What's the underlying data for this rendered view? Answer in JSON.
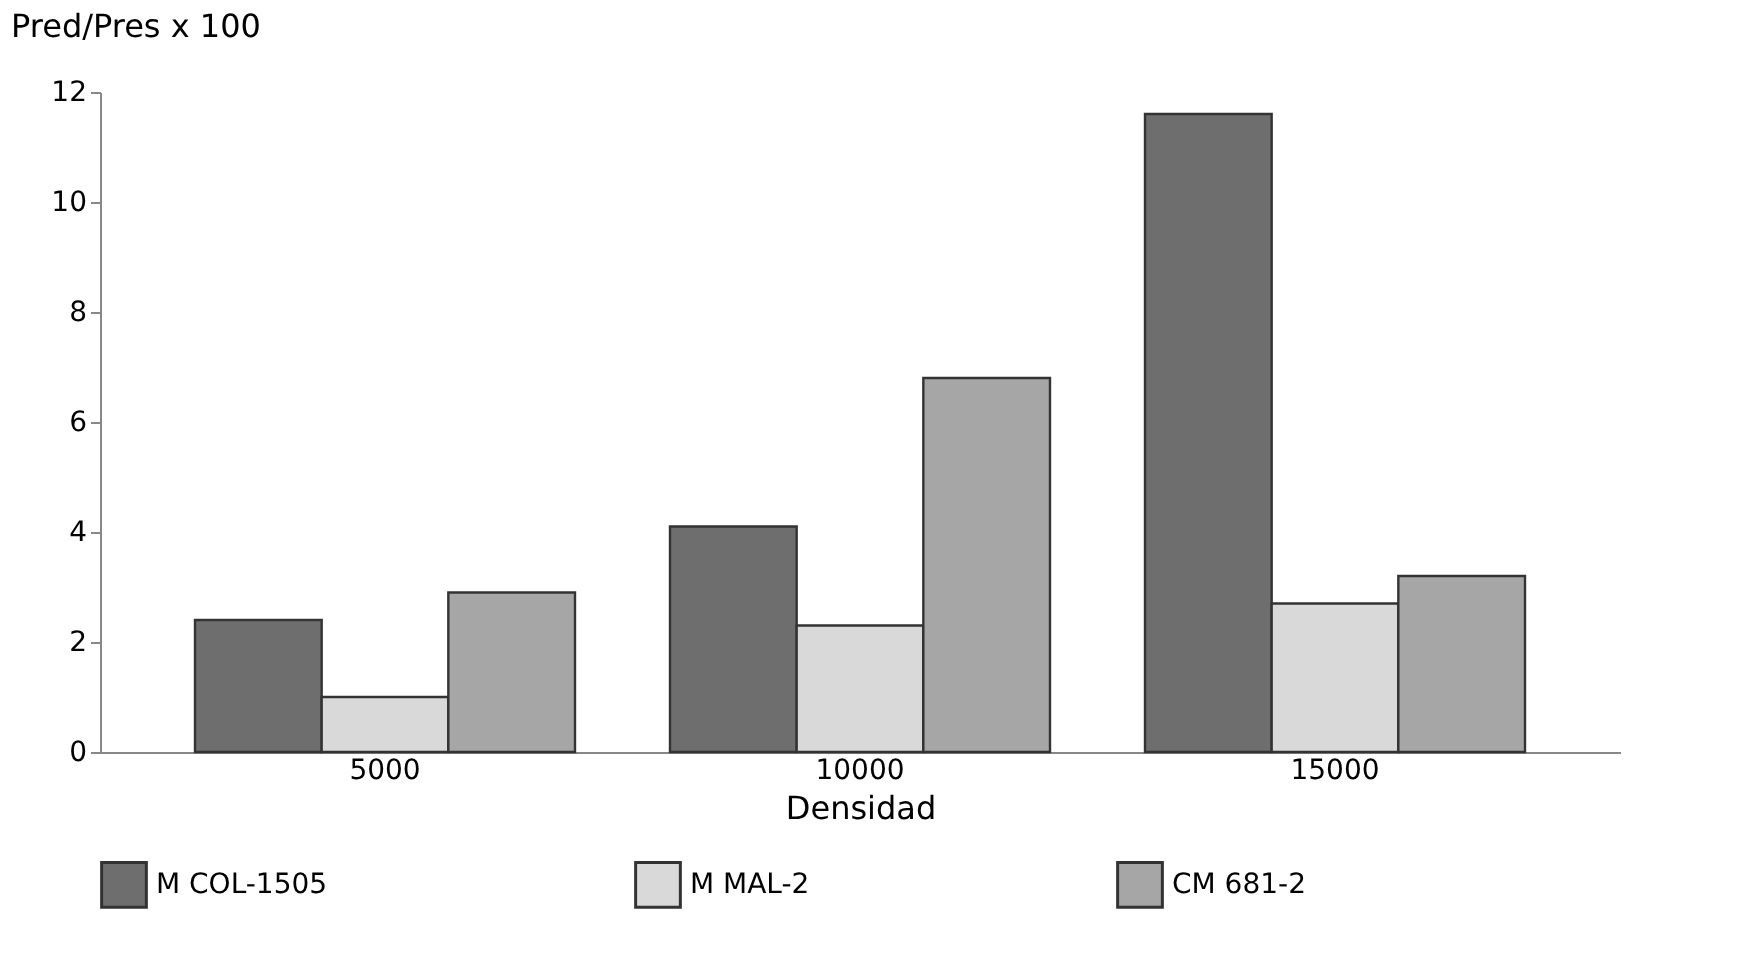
{
  "chart_data": {
    "type": "bar",
    "xlabel": "Densidad",
    "ylabel": "Pred/Pres x 100",
    "categories": [
      "5000",
      "10000",
      "15000"
    ],
    "series": [
      {
        "name": "M COL-1505",
        "color": "#6e6e6e",
        "values": [
          2.4,
          4.1,
          11.6
        ]
      },
      {
        "name": "M MAL-2",
        "color": "#d9d9d9",
        "values": [
          1.0,
          2.3,
          2.7
        ]
      },
      {
        "name": "CM 681-2",
        "color": "#a6a6a6",
        "values": [
          2.9,
          6.8,
          3.2
        ]
      }
    ],
    "ylim": [
      0,
      12
    ],
    "yticks": [
      0,
      2,
      4,
      6,
      8,
      10,
      12
    ],
    "grid": false,
    "legend": "bottom"
  }
}
